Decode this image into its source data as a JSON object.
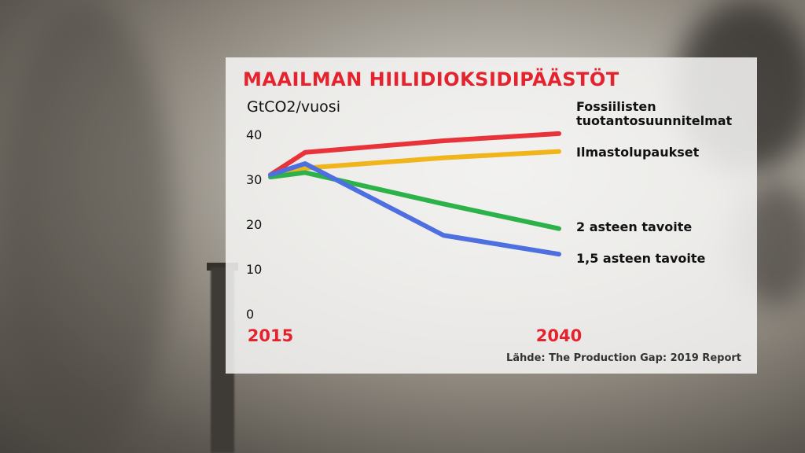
{
  "chart_data": {
    "type": "line",
    "title": "MAAILMAN HIILIDIOKSIDIPÄÄSTÖT",
    "ylabel": "GtCO2/vuosi",
    "xlabel": "",
    "x": [
      2015,
      2018,
      2030,
      2040
    ],
    "xticks": [
      "2015",
      "2040"
    ],
    "yticks": [
      "0",
      "10",
      "20",
      "30",
      "40"
    ],
    "ylim": [
      0,
      45
    ],
    "xlim": [
      2015,
      2040
    ],
    "grid": false,
    "legend": "right, labels at line ends",
    "series": [
      {
        "name": "Fossiilisten tuotantosuunnitelmat",
        "color": "#e8333a",
        "values": [
          31,
          36,
          38.6,
          40.2
        ]
      },
      {
        "name": "Ilmastolupaukset",
        "color": "#f0b51a",
        "values": [
          31,
          32.5,
          34.8,
          36.2
        ]
      },
      {
        "name": "2 asteen tavoite",
        "color": "#2db24a",
        "values": [
          30.5,
          31.5,
          24.5,
          19
        ]
      },
      {
        "name": "1,5 asteen tavoite",
        "color": "#4d6fe0",
        "values": [
          31,
          33.5,
          17.5,
          13.3
        ]
      }
    ],
    "source": "Lähde: The Production Gap: 2019 Report"
  }
}
